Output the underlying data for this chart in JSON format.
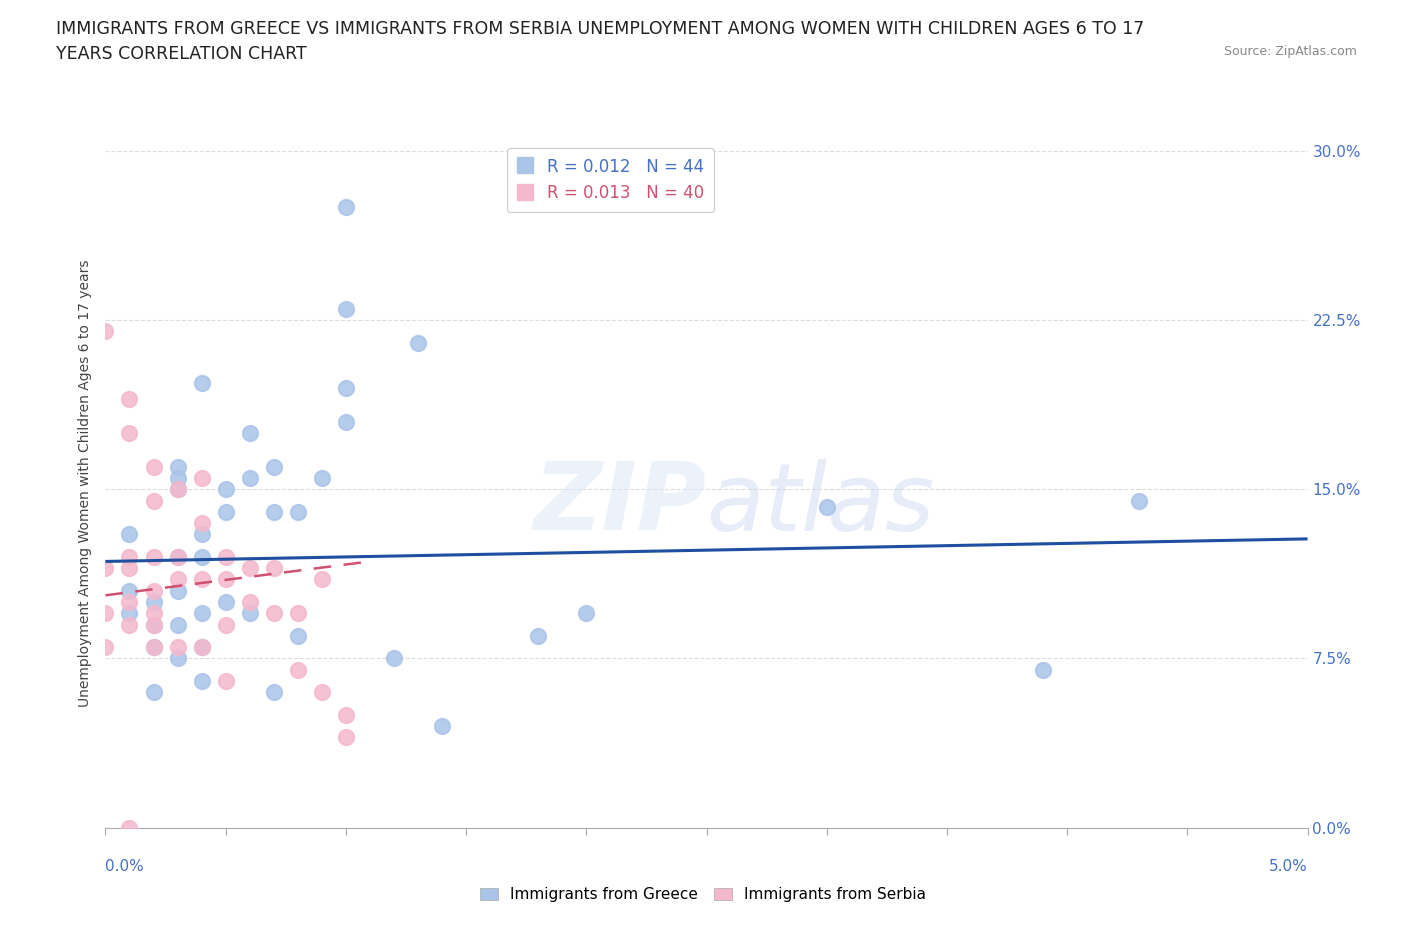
{
  "title_line1": "IMMIGRANTS FROM GREECE VS IMMIGRANTS FROM SERBIA UNEMPLOYMENT AMONG WOMEN WITH CHILDREN AGES 6 TO 17",
  "title_line2": "YEARS CORRELATION CHART",
  "source_text": "Source: ZipAtlas.com",
  "ylabel": "Unemployment Among Women with Children Ages 6 to 17 years",
  "xlim": [
    0.0,
    0.05
  ],
  "ylim": [
    0.0,
    0.305
  ],
  "yticks": [
    0.0,
    0.075,
    0.15,
    0.225,
    0.3
  ],
  "ytick_labels": [
    "0.0%",
    "7.5%",
    "15.0%",
    "22.5%",
    "30.0%"
  ],
  "xtick_left_label": "0.0%",
  "xtick_right_label": "5.0%",
  "legend_R_greece": "R = 0.012",
  "legend_N_greece": "N = 44",
  "legend_R_serbia": "R = 0.013",
  "legend_N_serbia": "N = 40",
  "greece_label": "Immigrants from Greece",
  "serbia_label": "Immigrants from Serbia",
  "greece_color": "#aac4e8",
  "serbia_color": "#f4b8cc",
  "greece_line_color": "#1f4fa0",
  "serbia_line_color": "#d05070",
  "greece_x": [
    0.005,
    0.004,
    0.001,
    0.001,
    0.001,
    0.002,
    0.002,
    0.002,
    0.002,
    0.003,
    0.003,
    0.003,
    0.003,
    0.003,
    0.003,
    0.003,
    0.004,
    0.004,
    0.004,
    0.004,
    0.004,
    0.005,
    0.005,
    0.006,
    0.006,
    0.006,
    0.007,
    0.007,
    0.007,
    0.008,
    0.008,
    0.009,
    0.01,
    0.01,
    0.01,
    0.01,
    0.012,
    0.013,
    0.014,
    0.018,
    0.02,
    0.03,
    0.039,
    0.043
  ],
  "greece_y": [
    0.14,
    0.197,
    0.13,
    0.105,
    0.095,
    0.1,
    0.09,
    0.08,
    0.06,
    0.16,
    0.155,
    0.15,
    0.12,
    0.105,
    0.09,
    0.075,
    0.13,
    0.12,
    0.095,
    0.08,
    0.065,
    0.15,
    0.1,
    0.175,
    0.155,
    0.095,
    0.16,
    0.14,
    0.06,
    0.14,
    0.085,
    0.155,
    0.23,
    0.275,
    0.195,
    0.18,
    0.075,
    0.215,
    0.045,
    0.085,
    0.095,
    0.142,
    0.07,
    0.145
  ],
  "serbia_x": [
    0.0,
    0.0,
    0.0,
    0.0,
    0.001,
    0.001,
    0.001,
    0.001,
    0.001,
    0.001,
    0.002,
    0.002,
    0.002,
    0.002,
    0.002,
    0.002,
    0.002,
    0.003,
    0.003,
    0.003,
    0.003,
    0.004,
    0.004,
    0.004,
    0.004,
    0.005,
    0.005,
    0.005,
    0.005,
    0.006,
    0.006,
    0.007,
    0.007,
    0.008,
    0.008,
    0.009,
    0.009,
    0.01,
    0.01,
    0.001
  ],
  "serbia_y": [
    0.22,
    0.115,
    0.095,
    0.08,
    0.19,
    0.175,
    0.12,
    0.115,
    0.1,
    0.09,
    0.16,
    0.145,
    0.12,
    0.105,
    0.095,
    0.09,
    0.08,
    0.15,
    0.12,
    0.11,
    0.08,
    0.155,
    0.135,
    0.11,
    0.08,
    0.12,
    0.11,
    0.09,
    0.065,
    0.115,
    0.1,
    0.115,
    0.095,
    0.095,
    0.07,
    0.11,
    0.06,
    0.04,
    0.05,
    0.0
  ],
  "greece_trend_x": [
    0.0,
    0.05
  ],
  "greece_trend_y": [
    0.118,
    0.128
  ],
  "serbia_trend_x": [
    0.0,
    0.011
  ],
  "serbia_trend_y": [
    0.103,
    0.118
  ],
  "background_color": "#ffffff",
  "grid_color": "#dddddd",
  "title_fontsize": 12.5,
  "axis_label_fontsize": 10,
  "tick_fontsize": 11,
  "legend_fontsize": 12
}
